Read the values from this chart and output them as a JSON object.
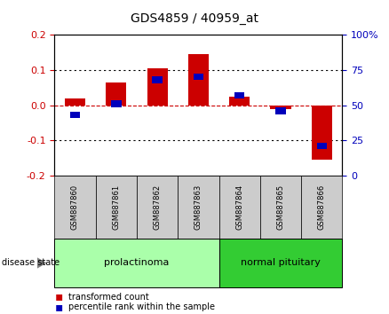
{
  "title": "GDS4859 / 40959_at",
  "samples": [
    "GSM887860",
    "GSM887861",
    "GSM887862",
    "GSM887863",
    "GSM887864",
    "GSM887865",
    "GSM887866"
  ],
  "transformed_count": [
    0.02,
    0.065,
    0.105,
    0.145,
    0.025,
    -0.01,
    -0.155
  ],
  "percentile_rank": [
    43,
    51,
    68,
    70,
    57,
    46,
    21
  ],
  "ylim_left": [
    -0.2,
    0.2
  ],
  "ylim_right": [
    0,
    100
  ],
  "yticks_left": [
    -0.2,
    -0.1,
    0.0,
    0.1,
    0.2
  ],
  "yticks_right": [
    0,
    25,
    50,
    75,
    100
  ],
  "ytick_labels_right": [
    "0",
    "25",
    "50",
    "75",
    "100%"
  ],
  "groups": [
    {
      "label": "prolactinoma",
      "n": 4,
      "color": "#AAFFAA"
    },
    {
      "label": "normal pituitary",
      "n": 3,
      "color": "#33CC33"
    }
  ],
  "bar_width": 0.5,
  "red_color": "#CC0000",
  "blue_color": "#0000BB",
  "bg_color": "#FFFFFF",
  "dashed_zero_color": "#CC0000",
  "sample_box_color": "#CCCCCC",
  "legend_red_label": "transformed count",
  "legend_blue_label": "percentile rank within the sample"
}
